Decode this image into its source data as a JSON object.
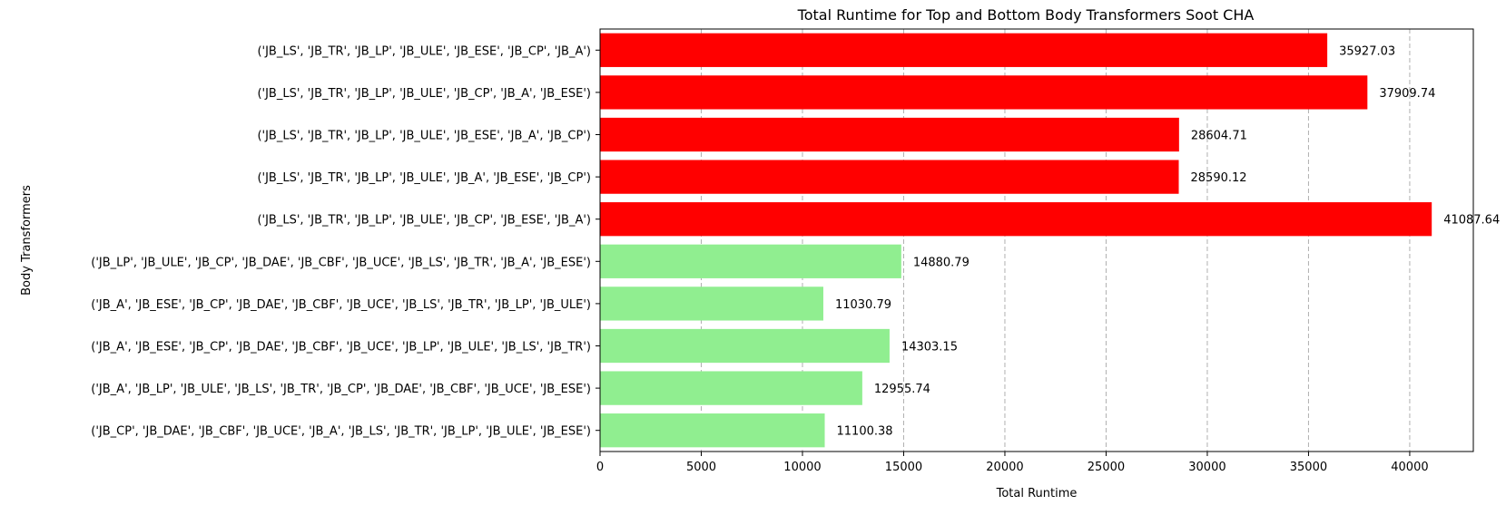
{
  "chart_data": {
    "type": "bar",
    "orientation": "horizontal",
    "title": "Total Runtime for Top and Bottom Body Transformers Soot CHA",
    "xlabel": "Total Runtime",
    "ylabel": "Body Transformers",
    "xlim": [
      0,
      43142
    ],
    "xticks": [
      0,
      5000,
      10000,
      15000,
      20000,
      25000,
      30000,
      35000,
      40000
    ],
    "xtick_labels": [
      "0",
      "5000",
      "10000",
      "15000",
      "20000",
      "25000",
      "30000",
      "35000",
      "40000"
    ],
    "grid": "x-dashed",
    "categories": [
      "('JB_LS', 'JB_TR', 'JB_LP', 'JB_ULE', 'JB_ESE', 'JB_CP', 'JB_A')",
      "('JB_LS', 'JB_TR', 'JB_LP', 'JB_ULE', 'JB_CP', 'JB_A', 'JB_ESE')",
      "('JB_LS', 'JB_TR', 'JB_LP', 'JB_ULE', 'JB_ESE', 'JB_A', 'JB_CP')",
      "('JB_LS', 'JB_TR', 'JB_LP', 'JB_ULE', 'JB_A', 'JB_ESE', 'JB_CP')",
      "('JB_LS', 'JB_TR', 'JB_LP', 'JB_ULE', 'JB_CP', 'JB_ESE', 'JB_A')",
      "('JB_LP', 'JB_ULE', 'JB_CP', 'JB_DAE', 'JB_CBF', 'JB_UCE', 'JB_LS', 'JB_TR', 'JB_A', 'JB_ESE')",
      "('JB_A', 'JB_ESE', 'JB_CP', 'JB_DAE', 'JB_CBF', 'JB_UCE', 'JB_LS', 'JB_TR', 'JB_LP', 'JB_ULE')",
      "('JB_A', 'JB_ESE', 'JB_CP', 'JB_DAE', 'JB_CBF', 'JB_UCE', 'JB_LP', 'JB_ULE', 'JB_LS', 'JB_TR')",
      "('JB_A', 'JB_LP', 'JB_ULE', 'JB_LS', 'JB_TR', 'JB_CP', 'JB_DAE', 'JB_CBF', 'JB_UCE', 'JB_ESE')",
      "('JB_CP', 'JB_DAE', 'JB_CBF', 'JB_UCE', 'JB_A', 'JB_LS', 'JB_TR', 'JB_LP', 'JB_ULE', 'JB_ESE')"
    ],
    "values": [
      35927.03,
      37909.74,
      28604.71,
      28590.12,
      41087.64,
      14880.79,
      11030.79,
      14303.15,
      12955.74,
      11100.38
    ],
    "value_labels": [
      "35927.03",
      "37909.74",
      "28604.71",
      "28590.12",
      "41087.64",
      "14880.79",
      "11030.79",
      "14303.15",
      "12955.74",
      "11100.38"
    ],
    "colors": [
      "#ff0000",
      "#ff0000",
      "#ff0000",
      "#ff0000",
      "#ff0000",
      "#90ee90",
      "#90ee90",
      "#90ee90",
      "#90ee90",
      "#90ee90"
    ]
  }
}
